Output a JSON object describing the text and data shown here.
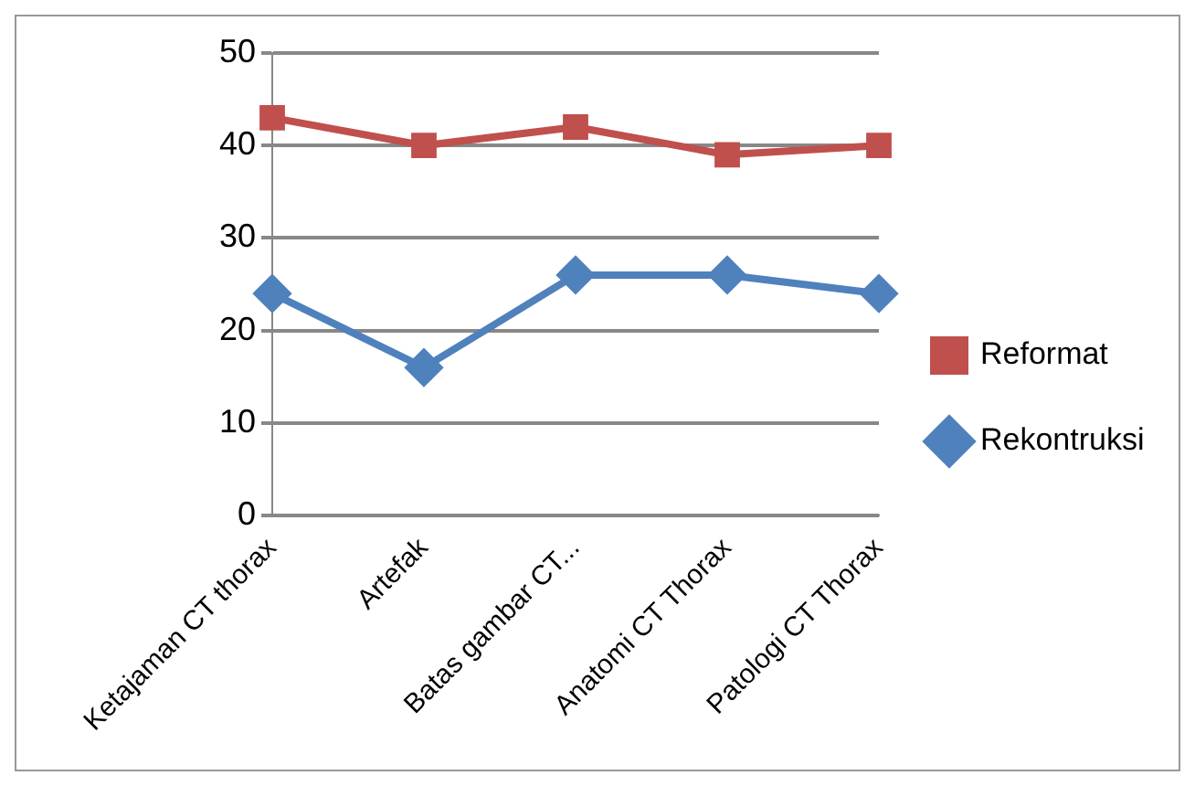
{
  "chart_data": {
    "type": "line",
    "categories": [
      "Ketajaman CT thorax",
      "Artefak",
      "Batas gambar CT...",
      "Anatomi CT Thorax",
      "Patologi CT Thorax"
    ],
    "series": [
      {
        "name": "Reformat",
        "color": "#c0504d",
        "marker": "square",
        "values": [
          43,
          40,
          42,
          39,
          40
        ]
      },
      {
        "name": "Rekontruksi",
        "color": "#4f81bd",
        "marker": "diamond",
        "values": [
          24,
          16,
          26,
          26,
          24
        ]
      }
    ],
    "ylim": [
      0,
      50
    ],
    "yticks": [
      0,
      10,
      20,
      30,
      40,
      50
    ],
    "grid": "y",
    "legend": "right"
  }
}
